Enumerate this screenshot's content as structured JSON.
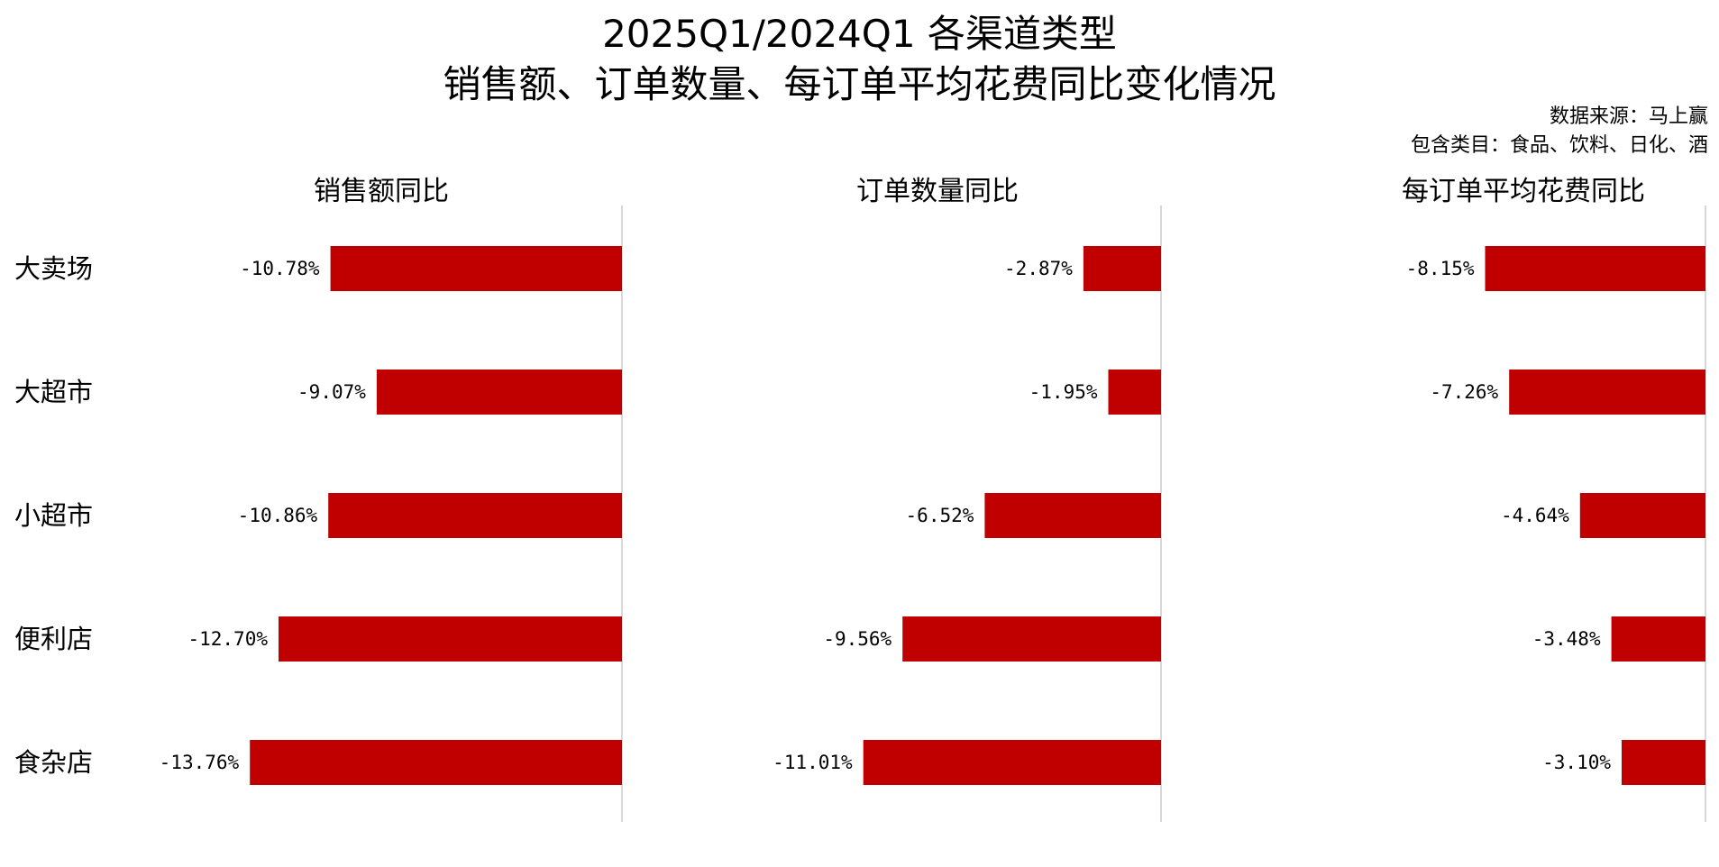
{
  "header": {
    "title_line1": "2025Q1/2024Q1 各渠道类型",
    "title_line2": "销售额、订单数量、每订单平均花费同比变化情况",
    "source_line1": "数据来源：马上赢",
    "source_line2": "包含类目：食品、饮料、日化、酒"
  },
  "chart_data": {
    "type": "bar",
    "orientation": "horizontal",
    "layout": "three side-by-side panels sharing the category axis",
    "categories": [
      "大卖场",
      "大超市",
      "小超市",
      "便利店",
      "食杂店"
    ],
    "bar_color": "#C00000",
    "grid": false,
    "legend": "none",
    "unit": "%",
    "panels": [
      {
        "title": "销售额同比",
        "values": [
          -10.78,
          -9.07,
          -10.86,
          -12.7,
          -13.76
        ],
        "labels": [
          "-10.78%",
          "-9.07%",
          "-10.86%",
          "-12.70%",
          "-13.76%"
        ]
      },
      {
        "title": "订单数量同比",
        "values": [
          -2.87,
          -1.95,
          -6.52,
          -9.56,
          -11.01
        ],
        "labels": [
          "-2.87%",
          "-1.95%",
          "-6.52%",
          "-9.56%",
          "-11.01%"
        ]
      },
      {
        "title": "每订单平均花费同比",
        "values": [
          -8.15,
          -7.26,
          -4.64,
          -3.48,
          -3.1
        ],
        "labels": [
          "-8.15%",
          "-7.26%",
          "-4.64%",
          "-3.48%",
          "-3.10%"
        ]
      }
    ]
  }
}
